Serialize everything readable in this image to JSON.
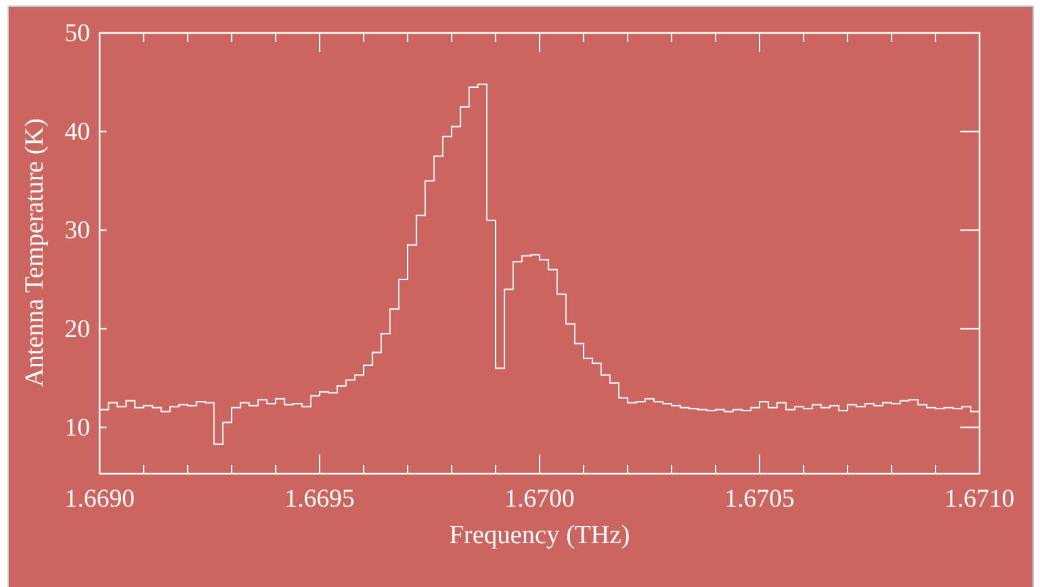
{
  "chart_data": {
    "type": "line",
    "step": true,
    "color": "#ffffff",
    "background": "#cc6560",
    "x_label": "Frequency (THz)",
    "y_label": "Antenna Temperature (K)",
    "xlim": [
      1.669,
      1.671
    ],
    "ylim": [
      5.3,
      50
    ],
    "xticks": [
      {
        "value": 1.669,
        "label": "1.6690"
      },
      {
        "value": 1.6695,
        "label": "1.6695"
      },
      {
        "value": 1.67,
        "label": "1.6700"
      },
      {
        "value": 1.6705,
        "label": "1.6705"
      },
      {
        "value": 1.671,
        "label": "1.6710"
      }
    ],
    "xminorticks": [
      1.6691,
      1.6692,
      1.6693,
      1.6694,
      1.6696,
      1.6697,
      1.6698,
      1.6699,
      1.6701,
      1.6702,
      1.6703,
      1.6704,
      1.6706,
      1.6707,
      1.6708,
      1.6709
    ],
    "yticks": [
      10,
      20,
      30,
      40,
      50
    ],
    "x": [
      1.66901,
      1.66903,
      1.66905,
      1.66907,
      1.66909,
      1.66911,
      1.66913,
      1.66915,
      1.66917,
      1.66919,
      1.66921,
      1.66923,
      1.66925,
      1.66927,
      1.66929,
      1.66931,
      1.66933,
      1.66935,
      1.66937,
      1.66939,
      1.66941,
      1.66943,
      1.66945,
      1.66947,
      1.66949,
      1.66951,
      1.66953,
      1.66955,
      1.66957,
      1.66959,
      1.66961,
      1.66963,
      1.66965,
      1.66967,
      1.66969,
      1.66971,
      1.66973,
      1.66975,
      1.66977,
      1.66979,
      1.66981,
      1.66983,
      1.66985,
      1.66987,
      1.66989,
      1.66991,
      1.66993,
      1.66995,
      1.66997,
      1.66999,
      1.67001,
      1.67003,
      1.67005,
      1.67007,
      1.67009,
      1.67011,
      1.67013,
      1.67015,
      1.67017,
      1.67019,
      1.67021,
      1.67023,
      1.67025,
      1.67027,
      1.67029,
      1.67031,
      1.67033,
      1.67035,
      1.67037,
      1.67039,
      1.67041,
      1.67043,
      1.67045,
      1.67047,
      1.67049,
      1.67051,
      1.67053,
      1.67055,
      1.67057,
      1.67059,
      1.67061,
      1.67063,
      1.67065,
      1.67067,
      1.67069,
      1.67071,
      1.67073,
      1.67075,
      1.67077,
      1.67079,
      1.67081,
      1.67083,
      1.67085,
      1.67087,
      1.67089,
      1.67091,
      1.67093,
      1.67095,
      1.67097,
      1.67099
    ],
    "values": [
      11.8,
      12.5,
      12.1,
      12.7,
      12.0,
      12.2,
      12.0,
      11.6,
      12.1,
      12.3,
      12.2,
      12.6,
      12.5,
      8.3,
      10.5,
      12.0,
      12.5,
      12.2,
      12.8,
      12.4,
      12.9,
      12.3,
      12.4,
      12.1,
      13.2,
      13.6,
      13.5,
      14.2,
      14.8,
      15.3,
      16.3,
      17.6,
      19.5,
      22.0,
      25.0,
      28.5,
      31.5,
      35.0,
      37.5,
      39.5,
      40.5,
      42.5,
      44.5,
      44.8,
      31.0,
      16.0,
      24.0,
      26.8,
      27.4,
      27.5,
      27.0,
      26.0,
      23.5,
      20.5,
      18.5,
      17.0,
      16.5,
      15.3,
      14.5,
      13.0,
      12.5,
      12.6,
      12.9,
      12.6,
      12.4,
      12.2,
      12.0,
      11.9,
      11.8,
      11.7,
      11.8,
      11.6,
      11.8,
      11.7,
      12.0,
      12.6,
      12.0,
      12.5,
      11.8,
      12.1,
      11.9,
      12.3,
      12.0,
      12.2,
      11.7,
      12.3,
      12.1,
      12.4,
      12.2,
      12.5,
      12.4,
      12.7,
      12.8,
      12.3,
      12.0,
      11.9,
      12.0,
      11.9,
      12.1,
      11.6
    ]
  }
}
